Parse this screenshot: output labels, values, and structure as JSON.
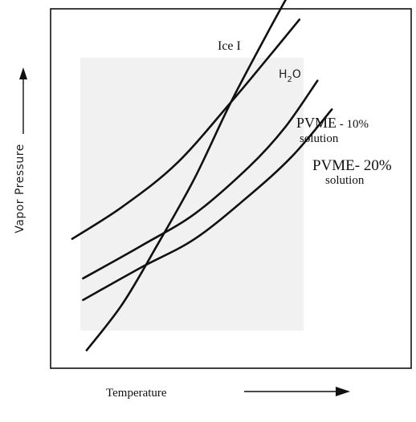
{
  "chart_data": {
    "type": "line",
    "title": "",
    "xlabel": "Temperature",
    "ylabel": "Vapor Pressure",
    "x_ticks": "none",
    "y_ticks": "none",
    "grid": false,
    "legend": "none (curves labeled directly at their upper ends)",
    "series": [
      {
        "name": "Ice I",
        "label_parts": {
          "main": "Ice I"
        },
        "x": [
          0.1,
          0.2,
          0.3,
          0.4,
          0.5,
          0.6,
          0.66
        ],
        "y": [
          0.05,
          0.18,
          0.35,
          0.53,
          0.74,
          0.93,
          1.04
        ]
      },
      {
        "name": "H2O",
        "label_parts": {
          "main": "H",
          "sub": "2",
          "tail": "O"
        },
        "x": [
          0.06,
          0.2,
          0.35,
          0.5,
          0.6,
          0.69
        ],
        "y": [
          0.36,
          0.45,
          0.57,
          0.74,
          0.86,
          0.97
        ]
      },
      {
        "name": "PVME - 10% solution",
        "label_parts": {
          "line1_a": "PVME",
          "line1_b": " - 10%",
          "line2": "solution"
        },
        "x": [
          0.09,
          0.25,
          0.4,
          0.55,
          0.65,
          0.74
        ],
        "y": [
          0.25,
          0.34,
          0.43,
          0.56,
          0.67,
          0.8
        ]
      },
      {
        "name": "PVME- 20% solution",
        "label_parts": {
          "line1_a": "PVME",
          "line1_b": "- 20%",
          "line2": "solution"
        },
        "x": [
          0.09,
          0.25,
          0.4,
          0.55,
          0.67,
          0.78
        ],
        "y": [
          0.19,
          0.28,
          0.36,
          0.48,
          0.59,
          0.72
        ]
      }
    ]
  }
}
